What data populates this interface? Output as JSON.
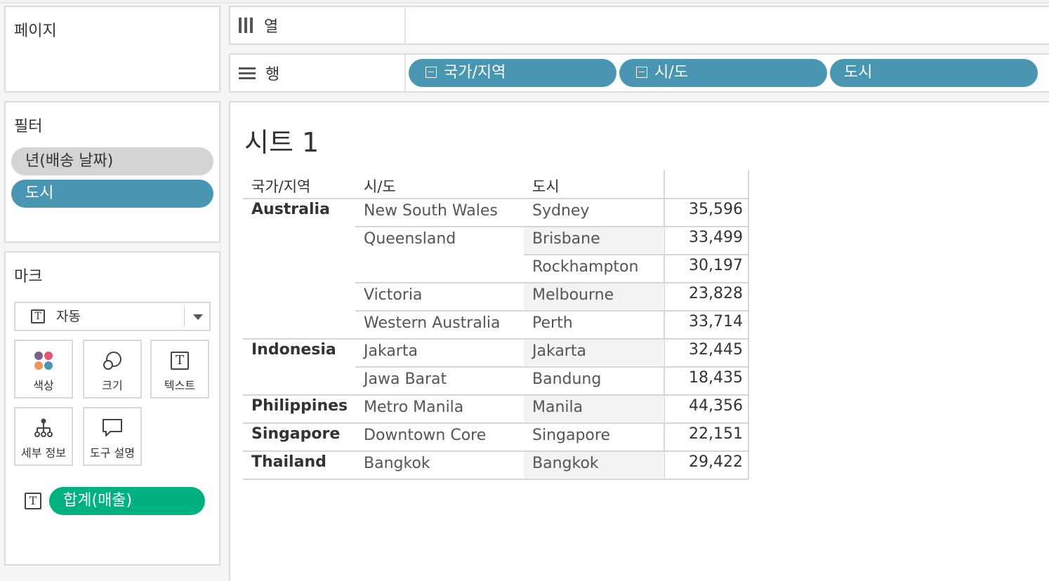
{
  "pages_card": {
    "title": "페이지"
  },
  "filters_card": {
    "title": "필터",
    "items": [
      "년(배송 날짜)",
      "도시"
    ]
  },
  "marks_card": {
    "title": "마크",
    "mark_type": "자동",
    "buttons": {
      "color": "색상",
      "size": "크기",
      "text": "텍스트",
      "detail": "세부 정보",
      "tooltip": "도구 설명"
    },
    "text_field": "합계(매출)"
  },
  "columns_shelf": {
    "label": "열",
    "pills": []
  },
  "rows_shelf": {
    "label": "행",
    "pills": [
      "국가/지역",
      "시/도",
      "도시"
    ]
  },
  "sheet": {
    "title": "시트 1",
    "headers": {
      "region": "국가/지역",
      "state": "시/도",
      "city": "도시",
      "value": ""
    },
    "rows": [
      {
        "region": "Australia",
        "state": "New South Wales",
        "city": "Sydney",
        "value": "35,596"
      },
      {
        "region": "",
        "state": "Queensland",
        "city": "Brisbane",
        "value": "33,499"
      },
      {
        "region": "",
        "state": "",
        "city": "Rockhampton",
        "value": "30,197"
      },
      {
        "region": "",
        "state": "Victoria",
        "city": "Melbourne",
        "value": "23,828"
      },
      {
        "region": "",
        "state": "Western Australia",
        "city": "Perth",
        "value": "33,714"
      },
      {
        "region": "Indonesia",
        "state": "Jakarta",
        "city": "Jakarta",
        "value": "32,445"
      },
      {
        "region": "",
        "state": "Jawa Barat",
        "city": "Bandung",
        "value": "18,435"
      },
      {
        "region": "Philippines",
        "state": "Metro Manila",
        "city": "Manila",
        "value": "44,356"
      },
      {
        "region": "Singapore",
        "state": "Downtown Core",
        "city": "Singapore",
        "value": "22,151"
      },
      {
        "region": "Thailand",
        "state": "Bangkok",
        "city": "Bangkok",
        "value": "29,422"
      }
    ]
  },
  "colors": {
    "dimension_pill": "#4996b2",
    "measure_pill": "#00b180",
    "filter_pill": "#d4d4d4"
  }
}
